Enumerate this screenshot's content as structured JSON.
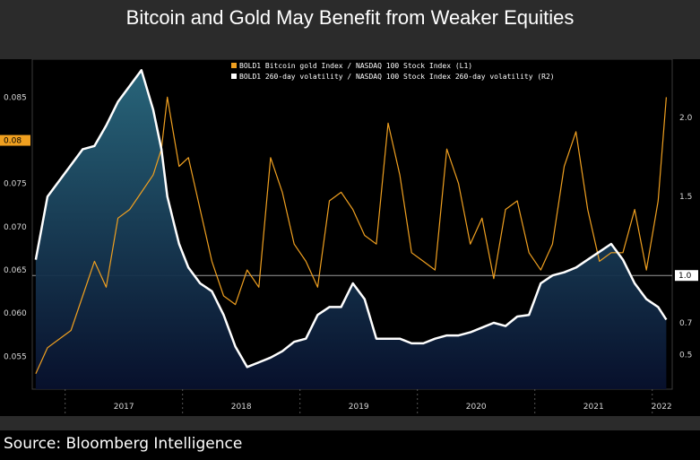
{
  "title": "Bitcoin and Gold May Benefit from Weaker Equities",
  "source": "Source: Bloomberg Intelligence",
  "colors": {
    "background": "#2b2b2b",
    "plot_background": "#000000",
    "series_l1": "#f0a020",
    "series_r2": "#ffffff",
    "area_fill_top": "#2a6a80",
    "area_fill_bottom": "#08112e",
    "current_value_tag": "#f0a020"
  },
  "chart_data": {
    "type": "line",
    "legend": [
      "BOLD1 Bitcoin gold Index / NASDAQ 100 Stock Index (L1)",
      "BOLD1 260-day volatility / NASDAQ 100 Stock Index 260-day volatility (R2)"
    ],
    "legend_position": "top-center",
    "x_labels": [
      "2017",
      "2018",
      "2019",
      "2020",
      "2021",
      "2022"
    ],
    "left_axis": {
      "ticks": [
        "0.085",
        "0.080",
        "0.075",
        "0.070",
        "0.065",
        "0.060",
        "0.055"
      ],
      "range": [
        0.0512,
        0.0894
      ],
      "current_value_label": "0.08"
    },
    "right_axis": {
      "ticks": [
        "2.0",
        "1.5",
        "0.5"
      ],
      "range": [
        0.28,
        2.37
      ],
      "reference_line": 1.0,
      "reference_label": "1.0",
      "current_value_label": "0.7"
    },
    "series": [
      {
        "name": "BOLD1 Bitcoin gold Index / NASDAQ 100 Stock Index (L1)",
        "axis": "left",
        "x": [
          2016.75,
          2016.85,
          2016.95,
          2017.05,
          2017.15,
          2017.25,
          2017.35,
          2017.45,
          2017.55,
          2017.65,
          2017.75,
          2017.82,
          2017.87,
          2017.92,
          2017.97,
          2018.05,
          2018.15,
          2018.25,
          2018.35,
          2018.45,
          2018.55,
          2018.65,
          2018.75,
          2018.85,
          2018.95,
          2019.05,
          2019.15,
          2019.25,
          2019.35,
          2019.45,
          2019.55,
          2019.65,
          2019.75,
          2019.85,
          2019.95,
          2020.05,
          2020.15,
          2020.25,
          2020.35,
          2020.45,
          2020.55,
          2020.65,
          2020.75,
          2020.85,
          2020.95,
          2021.05,
          2021.15,
          2021.25,
          2021.35,
          2021.45,
          2021.55,
          2021.65,
          2021.75,
          2021.85,
          2021.95,
          2022.05,
          2022.12
        ],
        "values": [
          0.053,
          0.056,
          0.057,
          0.058,
          0.062,
          0.066,
          0.063,
          0.071,
          0.072,
          0.074,
          0.076,
          0.079,
          0.085,
          0.081,
          0.077,
          0.078,
          0.072,
          0.066,
          0.062,
          0.061,
          0.065,
          0.063,
          0.078,
          0.074,
          0.068,
          0.066,
          0.063,
          0.073,
          0.074,
          0.072,
          0.069,
          0.068,
          0.082,
          0.076,
          0.067,
          0.066,
          0.065,
          0.079,
          0.075,
          0.068,
          0.071,
          0.064,
          0.072,
          0.073,
          0.067,
          0.065,
          0.068,
          0.077,
          0.081,
          0.072,
          0.066,
          0.067,
          0.067,
          0.072,
          0.065,
          0.073,
          0.085
        ]
      },
      {
        "name": "BOLD1 260-day volatility / NASDAQ 100 Stock Index 260-day volatility (R2)",
        "axis": "right",
        "x": [
          2016.75,
          2016.85,
          2016.95,
          2017.05,
          2017.15,
          2017.25,
          2017.35,
          2017.45,
          2017.55,
          2017.65,
          2017.75,
          2017.82,
          2017.87,
          2017.92,
          2017.97,
          2018.05,
          2018.15,
          2018.25,
          2018.35,
          2018.45,
          2018.55,
          2018.65,
          2018.75,
          2018.85,
          2018.95,
          2019.05,
          2019.15,
          2019.25,
          2019.35,
          2019.45,
          2019.55,
          2019.65,
          2019.75,
          2019.85,
          2019.95,
          2020.05,
          2020.15,
          2020.25,
          2020.35,
          2020.45,
          2020.55,
          2020.65,
          2020.75,
          2020.85,
          2020.95,
          2021.05,
          2021.15,
          2021.25,
          2021.35,
          2021.45,
          2021.55,
          2021.65,
          2021.75,
          2021.85,
          2021.95,
          2022.05,
          2022.12
        ],
        "values": [
          1.1,
          1.5,
          1.6,
          1.7,
          1.8,
          1.82,
          1.95,
          2.1,
          2.2,
          2.3,
          2.05,
          1.8,
          1.5,
          1.35,
          1.2,
          1.05,
          0.95,
          0.9,
          0.75,
          0.55,
          0.42,
          0.45,
          0.48,
          0.52,
          0.58,
          0.6,
          0.75,
          0.8,
          0.8,
          0.95,
          0.85,
          0.6,
          0.6,
          0.6,
          0.57,
          0.57,
          0.6,
          0.62,
          0.62,
          0.64,
          0.67,
          0.7,
          0.68,
          0.74,
          0.75,
          0.95,
          1.0,
          1.02,
          1.05,
          1.1,
          1.15,
          1.2,
          1.1,
          0.95,
          0.85,
          0.8,
          0.72
        ]
      }
    ]
  }
}
